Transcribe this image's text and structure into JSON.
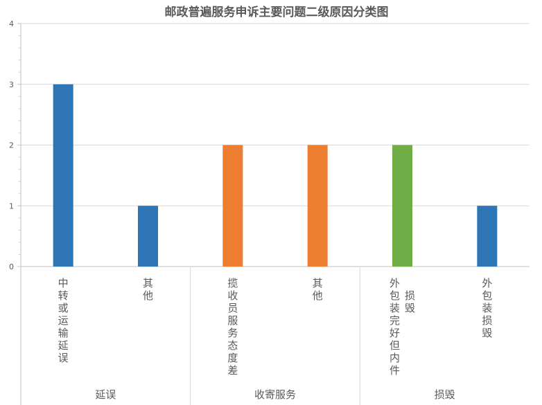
{
  "chart_data": {
    "type": "bar",
    "title": "邮政普遍服务申诉主要问题二级原因分类图",
    "xlabel": "",
    "ylabel": "",
    "ylim": [
      0,
      4
    ],
    "yticks": [
      "0",
      "1",
      "2",
      "3",
      "4"
    ],
    "grid": true,
    "groups": [
      {
        "label": "延误",
        "categories": [
          {
            "label": "中转或运输延误",
            "value": 3,
            "color": "#2e75b6"
          },
          {
            "label": "其他",
            "value": 1,
            "color": "#2e75b6"
          }
        ]
      },
      {
        "label": "收寄服务",
        "categories": [
          {
            "label": "揽收员服务态度差",
            "value": 2,
            "color": "#ed7d31"
          },
          {
            "label": "其他",
            "value": 2,
            "color": "#ed7d31"
          }
        ]
      },
      {
        "label": "损毁",
        "categories": [
          {
            "label": "外包装完好但内件损毁",
            "value": 2,
            "color": "#70ad47"
          },
          {
            "label": "外包装损毁",
            "value": 1,
            "color": "#2e75b6"
          }
        ]
      }
    ]
  }
}
